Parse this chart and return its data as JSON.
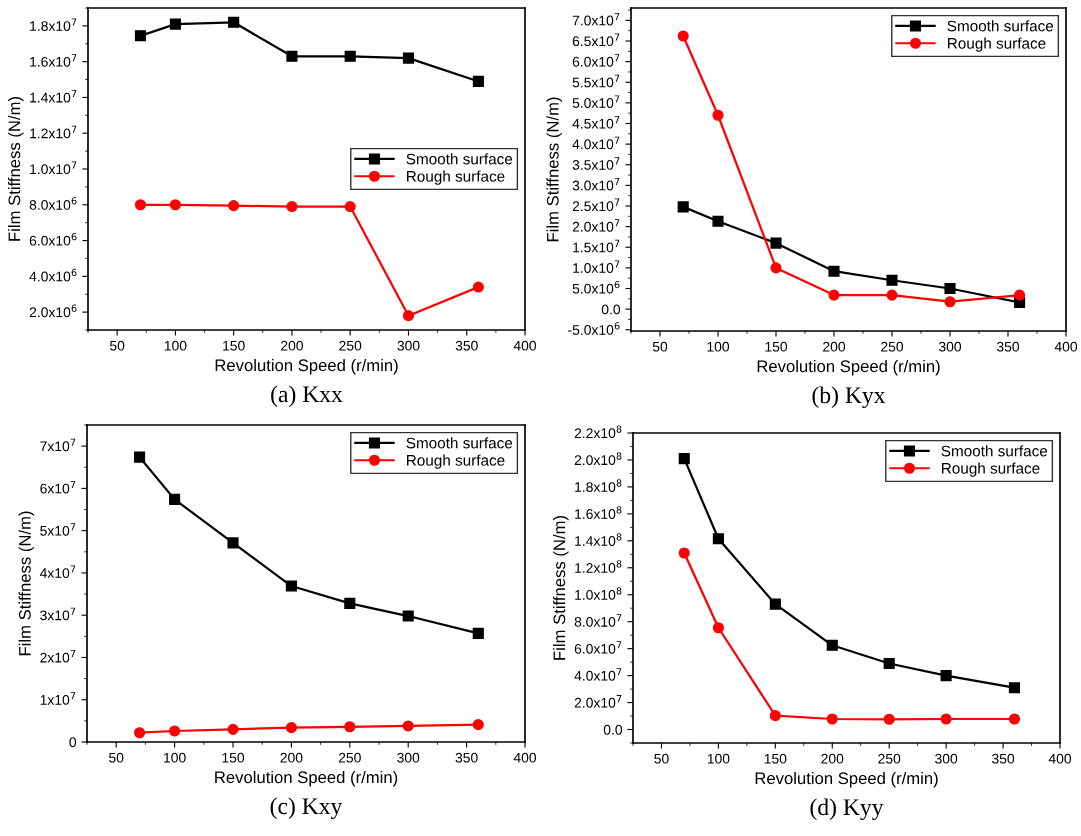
{
  "chart_data": [
    {
      "type": "line",
      "xlabel": "Revolution Speed (r/min)",
      "ylabel": "Film Stiffness (N/m)",
      "annotations": [
        "(a) Kxx"
      ],
      "legend": "center right",
      "line_style": "solid",
      "grid": false,
      "xlim": [
        25,
        400
      ],
      "xticks": [
        50,
        100,
        150,
        200,
        250,
        300,
        350,
        400
      ],
      "ylim": [
        1000000,
        19000000
      ],
      "yticks": [
        {
          "value": 2000000,
          "label": "2.0x10$^{6}$"
        },
        {
          "value": 4000000,
          "label": "4.0x10$^{6}$"
        },
        {
          "value": 6000000,
          "label": "6.0x10$^{6}$"
        },
        {
          "value": 8000000,
          "label": "8.0x10$^{6}$"
        },
        {
          "value": 10000000,
          "label": "1.0x10$^{7}$"
        },
        {
          "value": 12000000,
          "label": "1.2x10$^{7}$"
        },
        {
          "value": 14000000,
          "label": "1.4x10$^{7}$"
        },
        {
          "value": 16000000,
          "label": "1.6x10$^{7}$"
        },
        {
          "value": 18000000,
          "label": "1.8x10$^{7}$"
        }
      ],
      "x": [
        70,
        100,
        150,
        200,
        250,
        300,
        360
      ],
      "series": [
        {
          "name": "Smooth surface",
          "color": "#000000",
          "marker": "square",
          "values": [
            17450000,
            18100000,
            18200000,
            16300000,
            16300000,
            16200000,
            14900000
          ]
        },
        {
          "name": "Rough surface",
          "color": "#ff0000",
          "marker": "circle",
          "values": [
            8000000,
            8000000,
            7950000,
            7900000,
            7900000,
            1800000,
            3400000
          ]
        }
      ]
    },
    {
      "type": "line",
      "xlabel": "Revolution Speed (r/min)",
      "ylabel": "Film Stiffness (N/m)",
      "annotations": [
        "(b) Kyx"
      ],
      "legend": "top right",
      "line_style": "solid",
      "grid": false,
      "xlim": [
        25,
        400
      ],
      "xticks": [
        50,
        100,
        150,
        200,
        250,
        300,
        350,
        400
      ],
      "ylim": [
        -5300000,
        73000000
      ],
      "yticks": [
        {
          "value": -5000000,
          "label": "-5.0x10$^{6}$"
        },
        {
          "value": 0,
          "label": "0.0"
        },
        {
          "value": 5000000,
          "label": "5.0x10$^{6}$"
        },
        {
          "value": 10000000,
          "label": "1.0x10$^{7}$"
        },
        {
          "value": 15000000,
          "label": "1.5x10$^{7}$"
        },
        {
          "value": 20000000,
          "label": "2.0x10$^{7}$"
        },
        {
          "value": 25000000,
          "label": "2.5x10$^{7}$"
        },
        {
          "value": 30000000,
          "label": "3.0x10$^{7}$"
        },
        {
          "value": 35000000,
          "label": "3.5x10$^{7}$"
        },
        {
          "value": 40000000,
          "label": "4.0x10$^{7}$"
        },
        {
          "value": 45000000,
          "label": "4.5x10$^{7}$"
        },
        {
          "value": 50000000,
          "label": "5.0x10$^{7}$"
        },
        {
          "value": 55000000,
          "label": "5.5x10$^{7}$"
        },
        {
          "value": 60000000,
          "label": "6.0x10$^{7}$"
        },
        {
          "value": 65000000,
          "label": "6.5x10$^{7}$"
        },
        {
          "value": 70000000,
          "label": "7.0x10$^{7}$"
        }
      ],
      "x": [
        70,
        100,
        150,
        200,
        250,
        300,
        360
      ],
      "series": [
        {
          "name": "Smooth surface",
          "color": "#000000",
          "marker": "square",
          "values": [
            24800000,
            21300000,
            16000000,
            9200000,
            7000000,
            5000000,
            1600000
          ]
        },
        {
          "name": "Rough surface",
          "color": "#ff0000",
          "marker": "circle",
          "values": [
            66200000,
            47000000,
            10000000,
            3400000,
            3400000,
            1800000,
            3400000
          ]
        }
      ]
    },
    {
      "type": "line",
      "xlabel": "Revolution Speed (r/min)",
      "ylabel": "Film Stiffness (N/m)",
      "annotations": [
        "(c) Kxy"
      ],
      "legend": "top right",
      "line_style": "solid",
      "grid": false,
      "xlim": [
        25,
        400
      ],
      "xticks": [
        50,
        100,
        150,
        200,
        250,
        300,
        350,
        400
      ],
      "ylim": [
        0,
        75000000
      ],
      "yticks": [
        0,
        {
          "value": 10000000,
          "label": "1x10$^{7}$"
        },
        {
          "value": 20000000,
          "label": "2x10$^{7}$"
        },
        {
          "value": 30000000,
          "label": "3x10$^{7}$"
        },
        {
          "value": 40000000,
          "label": "4x10$^{7}$"
        },
        {
          "value": 50000000,
          "label": "5x10$^{7}$"
        },
        {
          "value": 60000000,
          "label": "6x10$^{7}$"
        },
        {
          "value": 70000000,
          "label": "7x10$^{7}$"
        }
      ],
      "x": [
        70,
        100,
        150,
        200,
        250,
        300,
        360
      ],
      "series": [
        {
          "name": "Smooth surface",
          "color": "#000000",
          "marker": "square",
          "values": [
            67400000,
            57400000,
            47100000,
            36900000,
            32800000,
            29800000,
            25700000
          ]
        },
        {
          "name": "Rough surface",
          "color": "#ff0000",
          "marker": "circle",
          "values": [
            2200000,
            2600000,
            3000000,
            3400000,
            3600000,
            3800000,
            4100000
          ]
        }
      ]
    },
    {
      "type": "line",
      "xlabel": "Revolution Speed (r/min)",
      "ylabel": "Film Stiffness (N/m)",
      "annotations": [
        "(d) Kyy"
      ],
      "legend": "top right",
      "line_style": "solid",
      "grid": false,
      "xlim": [
        25,
        400
      ],
      "xticks": [
        50,
        100,
        150,
        200,
        250,
        300,
        350,
        400
      ],
      "ylim": [
        -10000000,
        220000000
      ],
      "yticks": [
        {
          "value": 0,
          "label": "0.0"
        },
        {
          "value": 20000000,
          "label": "2.0x10$^{7}$"
        },
        {
          "value": 40000000,
          "label": "4.0x10$^{7}$"
        },
        {
          "value": 60000000,
          "label": "6.0x10$^{7}$"
        },
        {
          "value": 80000000,
          "label": "8.0x10$^{7}$"
        },
        {
          "value": 100000000,
          "label": "1.0x10$^{8}$"
        },
        {
          "value": 120000000,
          "label": "1.2x10$^{8}$"
        },
        {
          "value": 140000000,
          "label": "1.4x10$^{8}$"
        },
        {
          "value": 160000000,
          "label": "1.6x10$^{8}$"
        },
        {
          "value": 180000000,
          "label": "1.8x10$^{8}$"
        },
        {
          "value": 200000000,
          "label": "2.0x10$^{8}$"
        },
        {
          "value": 220000000,
          "label": "2.2x10$^{8}$"
        }
      ],
      "x": [
        70,
        100,
        150,
        200,
        250,
        300,
        360
      ],
      "series": [
        {
          "name": "Smooth surface",
          "color": "#000000",
          "marker": "square",
          "values": [
            201000000,
            141500000,
            93000000,
            62500000,
            49000000,
            40000000,
            31000000
          ]
        },
        {
          "name": "Rough surface",
          "color": "#ff0000",
          "marker": "circle",
          "values": [
            131000000,
            75500000,
            10300000,
            7800000,
            7600000,
            7800000,
            7800000
          ]
        }
      ]
    }
  ]
}
